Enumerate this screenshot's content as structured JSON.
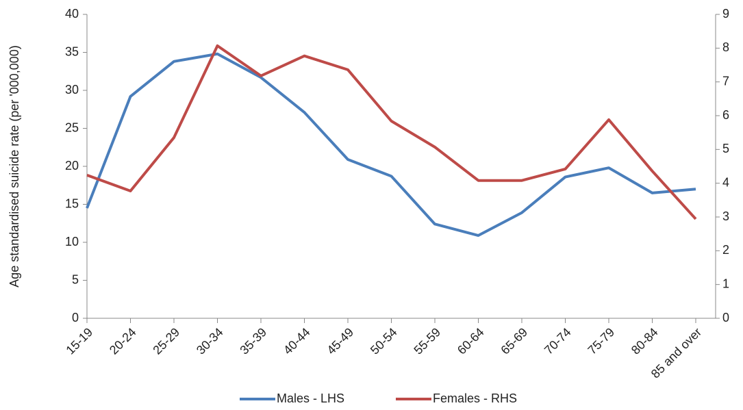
{
  "chart_data": {
    "type": "line",
    "y_label": "Age standardised  suicide rate (per '000,000)",
    "categories": [
      "15-19",
      "20-24",
      "25-29",
      "30-34",
      "35-39",
      "40-44",
      "45-49",
      "50-54",
      "55-59",
      "60-64",
      "65-69",
      "70-74",
      "75-79",
      "80-84",
      "85 and over"
    ],
    "series": [
      {
        "name": "Males - LHS",
        "color": "#4a7ebb",
        "values": [
          14.5,
          29.2,
          33.8,
          34.8,
          31.7,
          27.1,
          20.9,
          18.7,
          12.4,
          10.9,
          13.9,
          18.6,
          19.8,
          16.5,
          17.0
        ]
      },
      {
        "name": "Females - RHS",
        "color": "#be4b48",
        "axis": "y2",
        "values": [
          4.24,
          3.77,
          5.35,
          8.07,
          7.18,
          7.77,
          7.36,
          5.84,
          5.07,
          4.08,
          4.08,
          4.42,
          5.88,
          4.36,
          2.94
        ]
      }
    ],
    "ylim": [
      0,
      40
    ],
    "yticks": [
      0,
      5,
      10,
      15,
      20,
      25,
      30,
      35,
      40
    ],
    "y2lim": [
      0,
      9
    ],
    "y2ticks": [
      0,
      1,
      2,
      3,
      4,
      5,
      6,
      7,
      8,
      9
    ],
    "legend": "bottom"
  }
}
